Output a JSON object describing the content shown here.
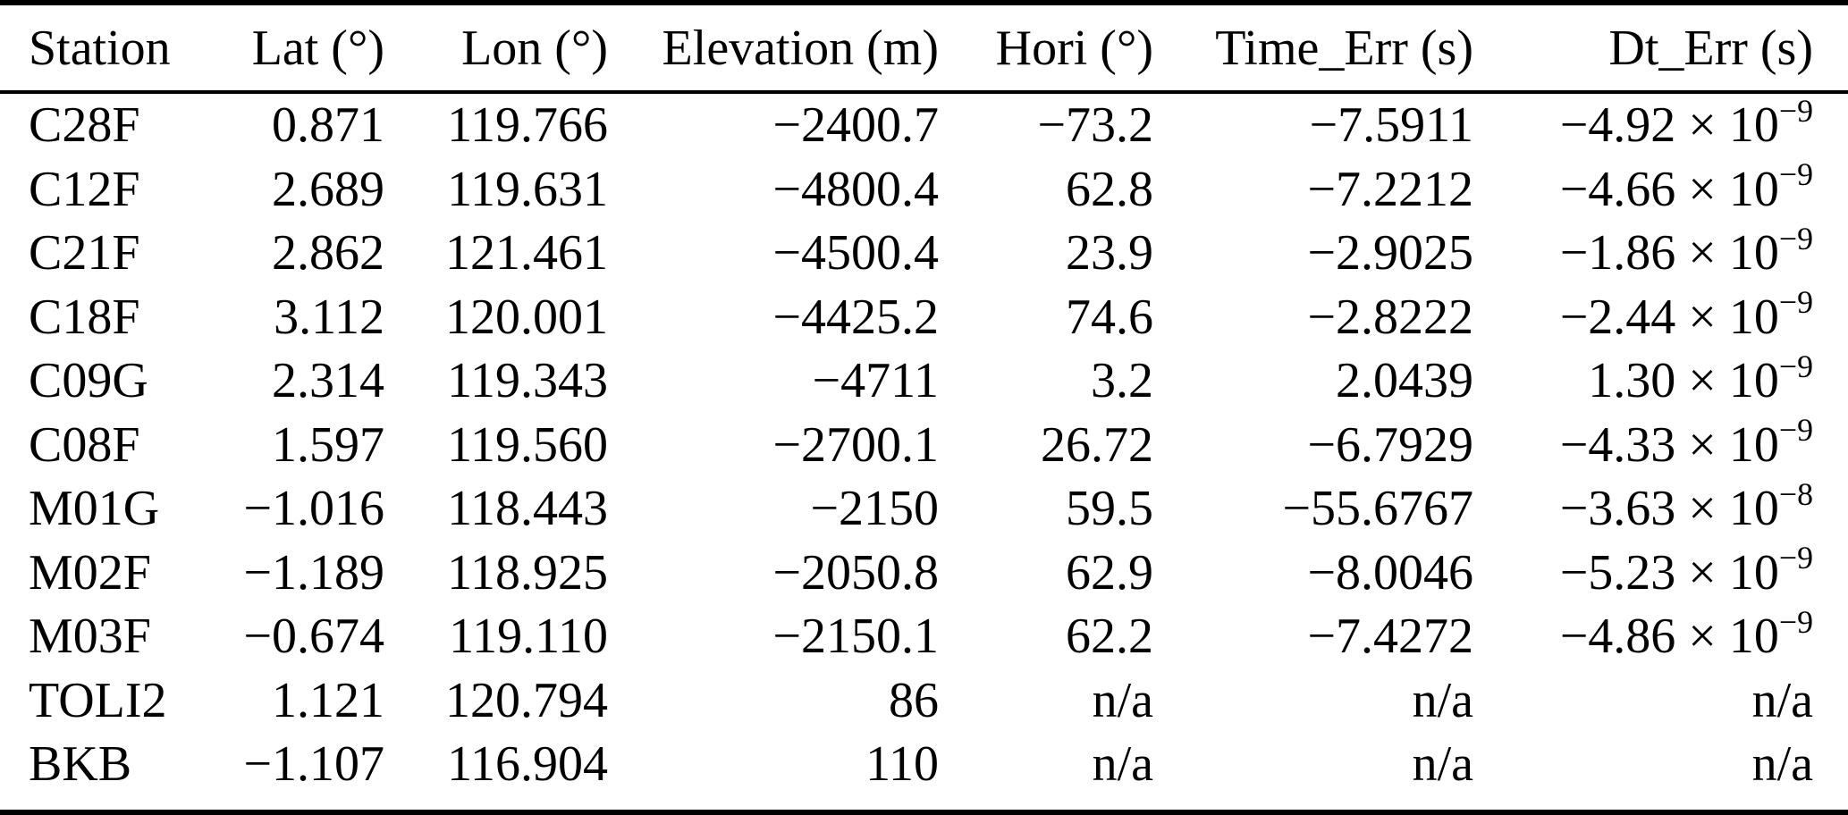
{
  "colors": {
    "text": "#000000",
    "background": "#ffffff",
    "rule": "#000000"
  },
  "table": {
    "columns": [
      "Station",
      "Lat (°)",
      "Lon (°)",
      "Elevation (m)",
      "Hori (°)",
      "Time_Err (s)",
      "Dt_Err (s)"
    ],
    "rows": [
      {
        "station": "C28F",
        "lat": "0.871",
        "lon": "119.766",
        "elevation": "−2400.7",
        "hori": "−73.2",
        "time_err": "−7.5911",
        "dt_err_mantissa": "−4.92 × 10",
        "dt_err_exp": "−9"
      },
      {
        "station": "C12F",
        "lat": "2.689",
        "lon": "119.631",
        "elevation": "−4800.4",
        "hori": "62.8",
        "time_err": "−7.2212",
        "dt_err_mantissa": "−4.66 × 10",
        "dt_err_exp": "−9"
      },
      {
        "station": "C21F",
        "lat": "2.862",
        "lon": "121.461",
        "elevation": "−4500.4",
        "hori": "23.9",
        "time_err": "−2.9025",
        "dt_err_mantissa": "−1.86 × 10",
        "dt_err_exp": "−9"
      },
      {
        "station": "C18F",
        "lat": "3.112",
        "lon": "120.001",
        "elevation": "−4425.2",
        "hori": "74.6",
        "time_err": "−2.8222",
        "dt_err_mantissa": "−2.44 × 10",
        "dt_err_exp": "−9"
      },
      {
        "station": "C09G",
        "lat": "2.314",
        "lon": "119.343",
        "elevation": "−4711",
        "hori": "3.2",
        "time_err": "2.0439",
        "dt_err_mantissa": "1.30 × 10",
        "dt_err_exp": "−9"
      },
      {
        "station": "C08F",
        "lat": "1.597",
        "lon": "119.560",
        "elevation": "−2700.1",
        "hori": "26.72",
        "time_err": "−6.7929",
        "dt_err_mantissa": "−4.33 × 10",
        "dt_err_exp": "−9"
      },
      {
        "station": "M01G",
        "lat": "−1.016",
        "lon": "118.443",
        "elevation": "−2150",
        "hori": "59.5",
        "time_err": "−55.6767",
        "dt_err_mantissa": "−3.63 × 10",
        "dt_err_exp": "−8"
      },
      {
        "station": "M02F",
        "lat": "−1.189",
        "lon": "118.925",
        "elevation": "−2050.8",
        "hori": "62.9",
        "time_err": "−8.0046",
        "dt_err_mantissa": "−5.23 × 10",
        "dt_err_exp": "−9"
      },
      {
        "station": "M03F",
        "lat": "−0.674",
        "lon": "119.110",
        "elevation": "−2150.1",
        "hori": "62.2",
        "time_err": "−7.4272",
        "dt_err_mantissa": "−4.86 × 10",
        "dt_err_exp": "−9"
      },
      {
        "station": "TOLI2",
        "lat": "1.121",
        "lon": "120.794",
        "elevation": "86",
        "hori": "n/a",
        "time_err": "n/a",
        "dt_err_mantissa": "n/a",
        "dt_err_exp": ""
      },
      {
        "station": "BKB",
        "lat": "−1.107",
        "lon": "116.904",
        "elevation": "110",
        "hori": "n/a",
        "time_err": "n/a",
        "dt_err_mantissa": "n/a",
        "dt_err_exp": ""
      }
    ]
  }
}
